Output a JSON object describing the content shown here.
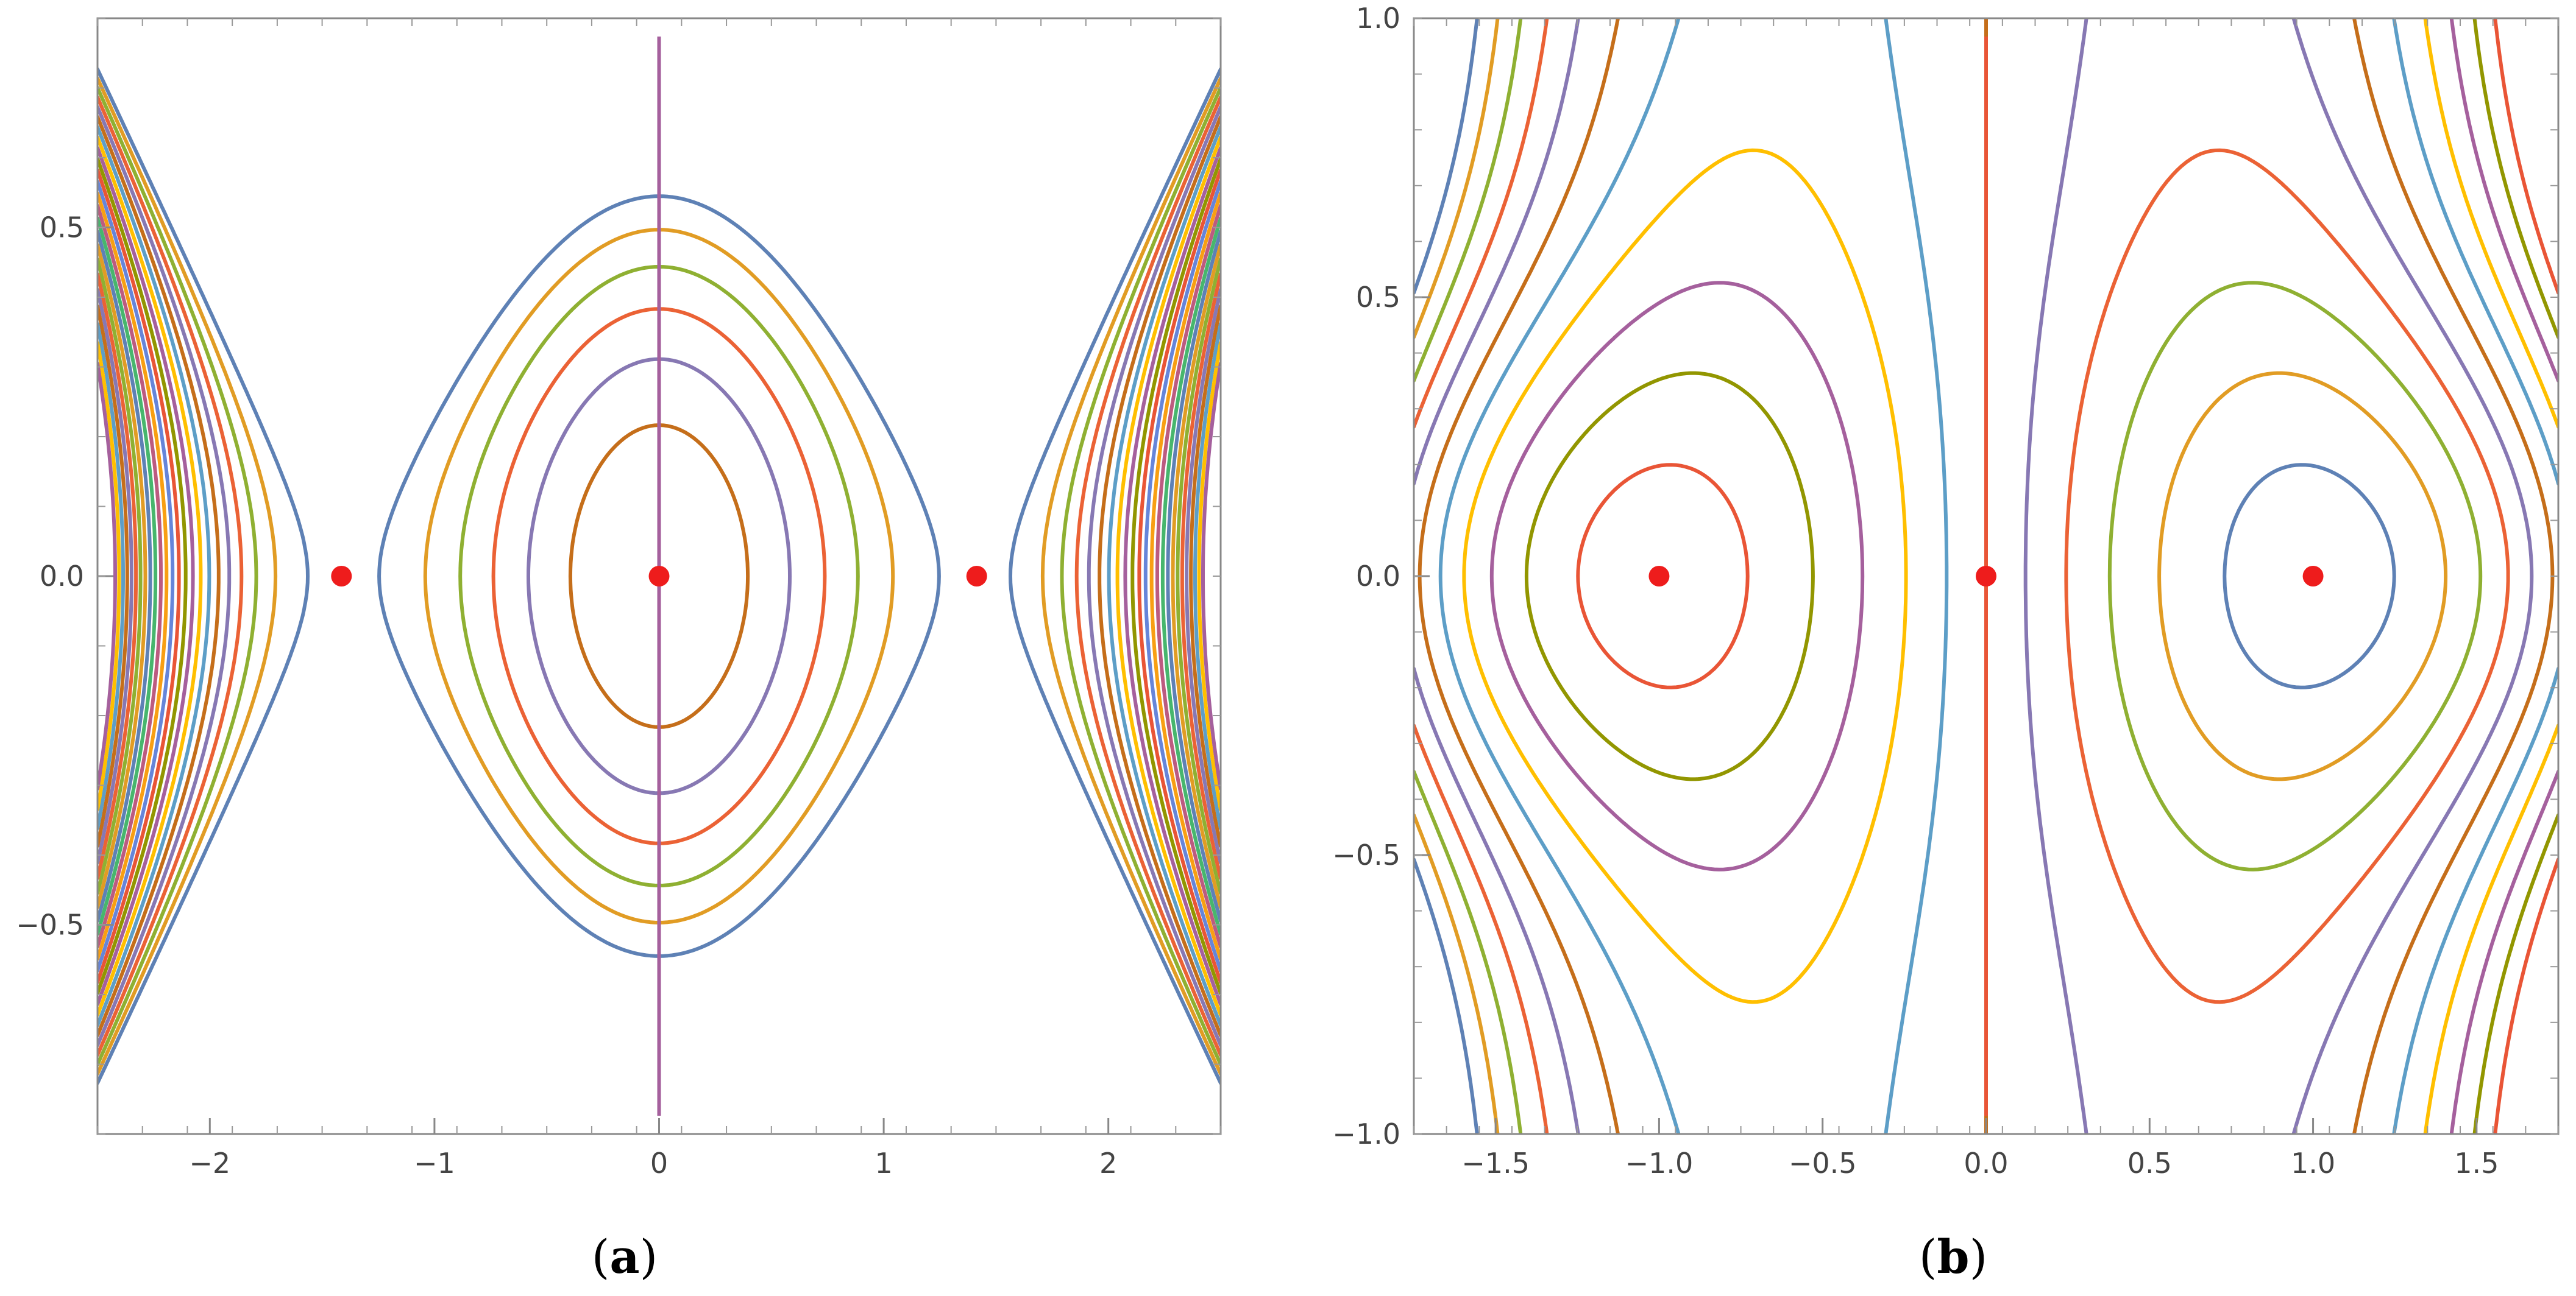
{
  "figure": {
    "panel_labels": [
      {
        "open": "(",
        "letter": "a",
        "close": ")"
      },
      {
        "open": "(",
        "letter": "b",
        "close": ")"
      }
    ]
  },
  "chart_data": [
    {
      "type": "contour",
      "panel": "a",
      "title": "",
      "xlabel": "",
      "ylabel": "",
      "xlim": [
        -2.5,
        2.5
      ],
      "ylim": [
        -0.8,
        0.8
      ],
      "x_ticks": [
        -2,
        -1,
        0,
        1,
        2
      ],
      "x_tick_labels": [
        "−2",
        "−1",
        "0",
        "1",
        "2"
      ],
      "y_ticks": [
        -0.5,
        0.0,
        0.5
      ],
      "y_tick_labels": [
        "−0.5",
        "0.0",
        "0.5"
      ],
      "grid": false,
      "legend": "none",
      "critical_points": [
        {
          "x": -1.414,
          "y": 0.0
        },
        {
          "x": 0.0,
          "y": 0.0
        },
        {
          "x": 1.414,
          "y": 0.0
        }
      ],
      "point_color": "#ee1c1c",
      "contour_level_count": 24,
      "line_colors": [
        "#5e81b5",
        "#e19c24",
        "#8fb032",
        "#eb6235",
        "#8778b3",
        "#c56e1a",
        "#5d9ec7",
        "#ffbf00",
        "#a5609d",
        "#929600",
        "#e95536",
        "#6685d9",
        "#f89f13",
        "#bc5b80",
        "#47b66d"
      ]
    },
    {
      "type": "contour",
      "panel": "b",
      "title": "",
      "xlabel": "",
      "ylabel": "",
      "xlim": [
        -1.75,
        1.75
      ],
      "ylim": [
        -1.0,
        1.0
      ],
      "x_ticks": [
        -1.5,
        -1.0,
        -0.5,
        0.0,
        0.5,
        1.0,
        1.5
      ],
      "x_tick_labels": [
        "−1.5",
        "−1.0",
        "−0.5",
        "0.0",
        "0.5",
        "1.0",
        "1.5"
      ],
      "y_ticks": [
        -1.0,
        -0.5,
        0.0,
        0.5,
        1.0
      ],
      "y_tick_labels": [
        "−1.0",
        "−0.5",
        "0.0",
        "0.5",
        "1.0"
      ],
      "grid": false,
      "legend": "none",
      "critical_points": [
        {
          "x": -1.0,
          "y": 0.0
        },
        {
          "x": 0.0,
          "y": 0.0
        },
        {
          "x": 1.0,
          "y": 0.0
        }
      ],
      "point_color": "#ee1c1c",
      "contour_level_count": 11,
      "line_colors": [
        "#5e81b5",
        "#e19c24",
        "#8fb032",
        "#eb6235",
        "#8778b3",
        "#c56e1a",
        "#5d9ec7",
        "#ffbf00",
        "#a5609d",
        "#929600",
        "#e95536"
      ]
    }
  ]
}
